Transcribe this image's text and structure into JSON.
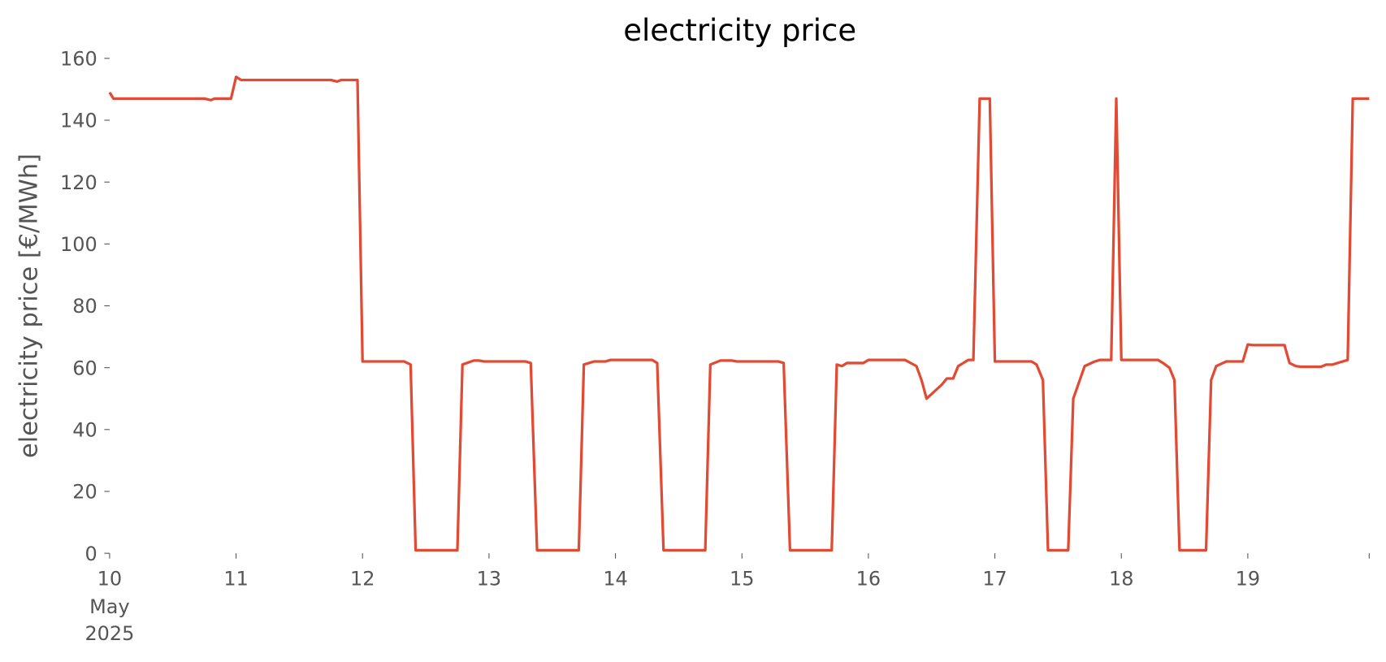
{
  "chart_data": {
    "type": "line",
    "title": "electricity price",
    "ylabel": "electricity price [€/MWh]",
    "xlim": [
      10,
      19.96
    ],
    "ylim": [
      0,
      160
    ],
    "xticks": [
      10,
      11,
      12,
      13,
      14,
      15,
      16,
      17,
      18,
      19
    ],
    "xtick_sublabels": [
      "May",
      "2025"
    ],
    "yticks": [
      0,
      20,
      40,
      60,
      80,
      100,
      120,
      140,
      160
    ],
    "grid": false,
    "series": [
      {
        "name": "electricity price",
        "color": "#e24a33",
        "x": [
          10.0,
          10.03,
          10.75,
          10.8,
          10.83,
          10.96,
          11.0,
          11.04,
          11.75,
          11.8,
          11.83,
          11.96,
          12.0,
          12.33,
          12.38,
          12.42,
          12.75,
          12.79,
          12.88,
          12.92,
          12.96,
          13.29,
          13.33,
          13.38,
          13.71,
          13.75,
          13.83,
          13.92,
          13.96,
          14.29,
          14.33,
          14.38,
          14.71,
          14.75,
          14.83,
          14.92,
          14.96,
          15.29,
          15.33,
          15.38,
          15.71,
          15.75,
          15.79,
          15.83,
          15.96,
          16.0,
          16.29,
          16.38,
          16.42,
          16.46,
          16.54,
          16.58,
          16.62,
          16.67,
          16.71,
          16.79,
          16.83,
          16.88,
          16.96,
          17.0,
          17.29,
          17.33,
          17.38,
          17.42,
          17.58,
          17.62,
          17.71,
          17.79,
          17.83,
          17.92,
          17.96,
          18.0,
          18.29,
          18.33,
          18.38,
          18.42,
          18.46,
          18.67,
          18.71,
          18.75,
          18.83,
          18.96,
          19.0,
          19.04,
          19.29,
          19.33,
          19.38,
          19.42,
          19.58,
          19.62,
          19.67,
          19.75,
          19.79,
          19.83,
          19.96
        ],
        "values": [
          149,
          147,
          147,
          146.5,
          147,
          147,
          154,
          153,
          153,
          152.5,
          153,
          153,
          62,
          62,
          61,
          1,
          1,
          61,
          62.3,
          62.3,
          62,
          62,
          61.5,
          1,
          1,
          61,
          62,
          62,
          62.5,
          62.5,
          61.5,
          1,
          1,
          61,
          62.3,
          62.3,
          62,
          62,
          61.5,
          1,
          1,
          61,
          60.5,
          61.5,
          61.5,
          62.5,
          62.5,
          60.5,
          56,
          50,
          53,
          54.5,
          56.5,
          56.5,
          60.5,
          62.5,
          62.5,
          147,
          147,
          62,
          62,
          61,
          56,
          1,
          1,
          50,
          60.5,
          62,
          62.5,
          62.5,
          147,
          62.5,
          62.5,
          61.5,
          60,
          56,
          1,
          1,
          56,
          60.5,
          62,
          62,
          67.5,
          67.3,
          67.3,
          61.5,
          60.5,
          60.3,
          60.3,
          61,
          61,
          62,
          62.5,
          147,
          147
        ]
      }
    ]
  }
}
